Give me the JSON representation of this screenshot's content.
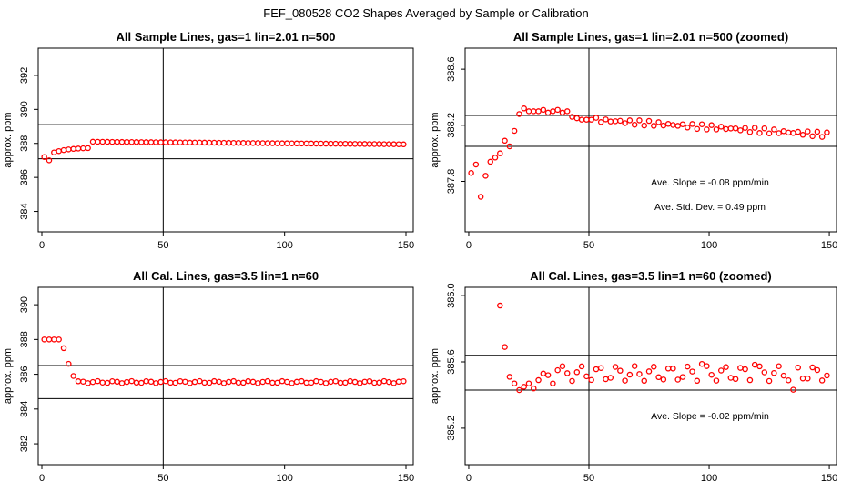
{
  "figure_title": "FEF_080528  CO2 Shapes Averaged by Sample or Calibration",
  "chart_data": [
    {
      "type": "scatter",
      "title": "All Sample Lines, gas=1 lin=2.01 n=500",
      "xlabel": "",
      "ylabel": "approx. ppm",
      "xlim": [
        -1.5,
        153
      ],
      "ylim": [
        382.8,
        393.6
      ],
      "xticks": [
        0,
        50,
        100,
        150
      ],
      "yticks": [
        384,
        386,
        388,
        390,
        392
      ],
      "hlines": [
        389.1,
        387.1
      ],
      "vlines": [
        50
      ],
      "marker_color": "#ff0000",
      "series": [
        {
          "x": [],
          "y": []
        }
      ],
      "annotations": []
    },
    {
      "type": "scatter",
      "title": "All Sample Lines, gas=1 lin=2.01 n=500 (zoomed)",
      "xlabel": "",
      "ylabel": "approx. ppm",
      "xlim": [
        -1.5,
        153
      ],
      "ylim": [
        387.44,
        388.75
      ],
      "xticks": [
        0,
        50,
        100,
        150
      ],
      "yticks": [
        387.8,
        388.2,
        388.6
      ],
      "hlines": [
        388.27,
        388.05
      ],
      "vlines": [
        50
      ],
      "marker_color": "#ff0000",
      "series": [
        {
          "x": [],
          "y": []
        }
      ],
      "annotations": [
        "Ave. Slope = -0.08  ppm/min",
        "Ave. Std. Dev. = 0.49  ppm"
      ]
    },
    {
      "type": "scatter",
      "title": "All Cal. Lines, gas=3.5 lin=1 n=60",
      "xlabel": "",
      "ylabel": "approx. ppm",
      "xlim": [
        -1.5,
        153
      ],
      "ylim": [
        380.8,
        391
      ],
      "xticks": [
        0,
        50,
        100,
        150
      ],
      "yticks": [
        382,
        384,
        386,
        388,
        390
      ],
      "hlines": [
        386.5,
        384.6
      ],
      "vlines": [
        50
      ],
      "marker_color": "#ff0000",
      "series": [
        {
          "x": [],
          "y": []
        }
      ],
      "annotations": []
    },
    {
      "type": "scatter",
      "title": "All Cal. Lines, gas=3.5 lin=1 n=60 (zoomed)",
      "xlabel": "",
      "ylabel": "approx. ppm",
      "xlim": [
        -1.5,
        153
      ],
      "ylim": [
        384.98,
        386.05
      ],
      "xticks": [
        0,
        50,
        100,
        150
      ],
      "yticks": [
        385.2,
        385.6,
        386.0
      ],
      "hlines": [
        385.64,
        385.43
      ],
      "vlines": [
        50
      ],
      "marker_color": "#ff0000",
      "series": [
        {
          "x": [],
          "y": []
        }
      ],
      "annotations": [
        "Ave. Slope = -0.02  ppm/min"
      ]
    }
  ]
}
